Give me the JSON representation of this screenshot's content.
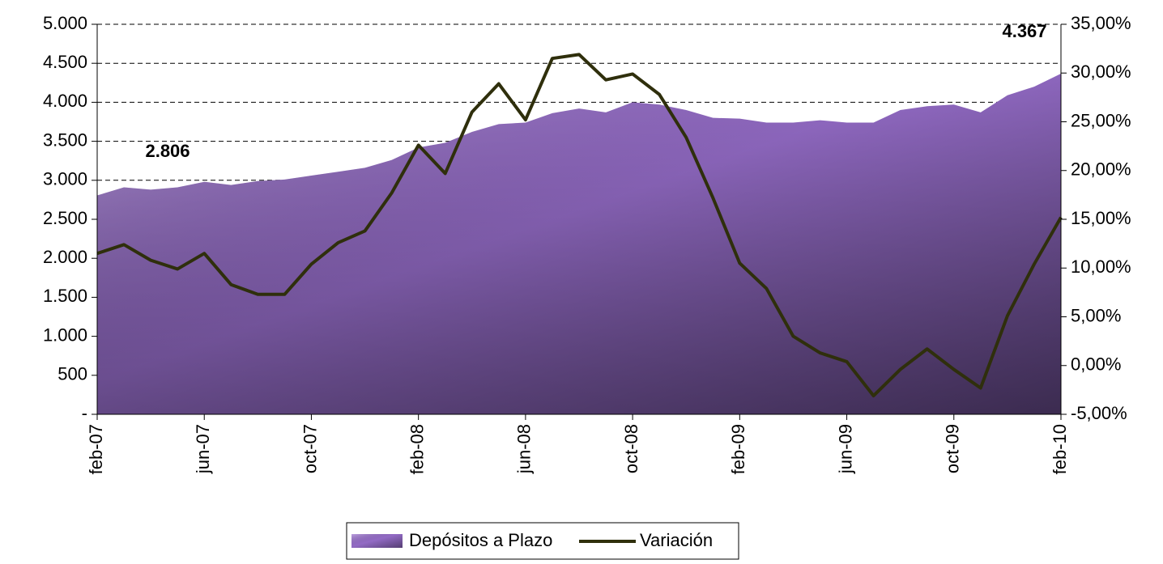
{
  "chart_data": {
    "type": "area-line",
    "categories": [
      "feb-07",
      null,
      null,
      null,
      "jun-07",
      null,
      null,
      null,
      "oct-07",
      null,
      null,
      null,
      "feb-08",
      null,
      null,
      null,
      "jun-08",
      null,
      null,
      null,
      "oct-08",
      null,
      null,
      null,
      "feb-09",
      null,
      null,
      null,
      "jun-09",
      null,
      null,
      null,
      "oct-09",
      null,
      null,
      null,
      "feb-10"
    ],
    "series": [
      {
        "name": "Depósitos a Plazo",
        "type": "area",
        "color": "#9a70cf",
        "values": [
          2806,
          2910,
          2880,
          2910,
          2980,
          2940,
          2990,
          3010,
          3060,
          3110,
          3160,
          3260,
          3420,
          3480,
          3620,
          3720,
          3740,
          3860,
          3920,
          3870,
          4000,
          3970,
          3900,
          3800,
          3790,
          3740,
          3740,
          3770,
          3740,
          3740,
          3900,
          3950,
          3970,
          3870,
          4090,
          4200,
          4367
        ],
        "value_labels": [
          "2.806",
          null,
          null,
          null,
          null,
          null,
          null,
          null,
          null,
          null,
          null,
          null,
          null,
          null,
          null,
          null,
          null,
          null,
          null,
          null,
          null,
          null,
          null,
          null,
          null,
          null,
          null,
          null,
          null,
          null,
          null,
          null,
          null,
          null,
          null,
          null,
          "4.367"
        ]
      },
      {
        "name": "Variación",
        "type": "line",
        "axis": "y2",
        "color": "#2f2f0c",
        "values": [
          11.5,
          12.4,
          10.8,
          9.9,
          11.5,
          8.3,
          7.3,
          7.3,
          10.4,
          12.6,
          13.8,
          17.7,
          22.6,
          19.7,
          26.0,
          28.9,
          25.2,
          31.5,
          31.9,
          29.3,
          29.9,
          27.8,
          23.4,
          17.2,
          10.5,
          7.9,
          3.0,
          1.3,
          0.4,
          -3.1,
          -0.4,
          1.7,
          -0.4,
          -2.3,
          5.1,
          10.4,
          15.2
        ]
      }
    ],
    "ylim": [
      0,
      5000
    ],
    "yticks": [
      {
        "value": 0,
        "label": "-"
      },
      500,
      {
        "value": 1000,
        "label": "1.000"
      },
      {
        "value": 1500,
        "label": "1.500"
      },
      {
        "value": 2000,
        "label": "2.000"
      },
      {
        "value": 2500,
        "label": "2.500"
      },
      {
        "value": 3000,
        "label": "3.000"
      },
      {
        "value": 3500,
        "label": "3.500"
      },
      {
        "value": 4000,
        "label": "4.000"
      },
      {
        "value": 4500,
        "label": "4.500"
      },
      {
        "value": 5000,
        "label": "5.000"
      }
    ],
    "y2lim": [
      -5,
      35
    ],
    "y2ticks": [
      {
        "value": -5,
        "label": "-5,00%"
      },
      {
        "value": 0,
        "label": "0,00%"
      },
      {
        "value": 5,
        "label": "5,00%"
      },
      {
        "value": 10,
        "label": "10,00%"
      },
      {
        "value": 15,
        "label": "15,00%"
      },
      {
        "value": 20,
        "label": "20,00%"
      },
      {
        "value": 25,
        "label": "25,00%"
      },
      {
        "value": 30,
        "label": "30,00%"
      },
      {
        "value": 35,
        "label": "35,00%"
      }
    ],
    "grid": true,
    "legend": "bottom"
  }
}
